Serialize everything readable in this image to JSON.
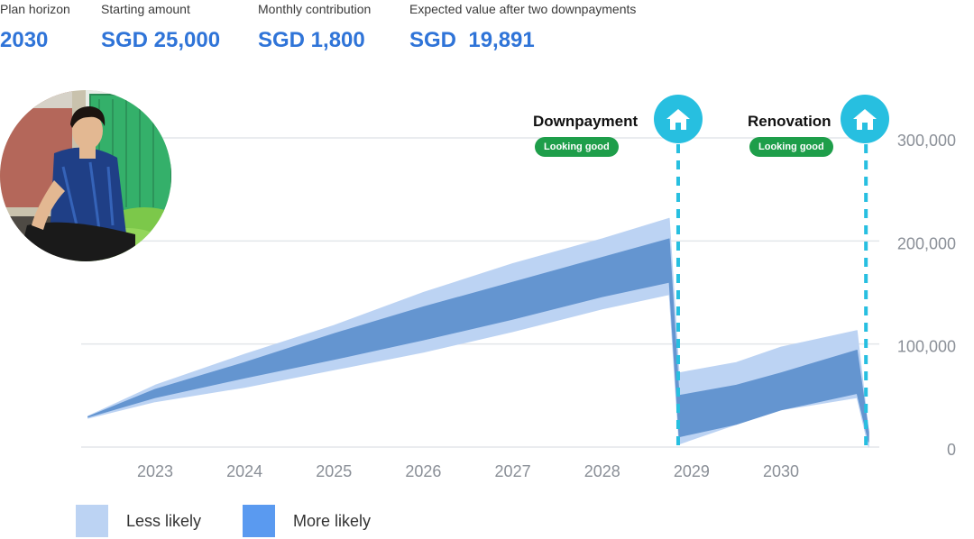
{
  "summary": {
    "plan_horizon": {
      "label": "Plan horizon",
      "value": "2030"
    },
    "starting_amount": {
      "label": "Starting amount",
      "value": "SGD 25,000"
    },
    "monthly_contribution": {
      "label": "Monthly contribution",
      "value": "SGD 1,800"
    },
    "expected_value": {
      "label": "Expected value after two downpayments",
      "value": "SGD  19,891"
    }
  },
  "events": [
    {
      "title": "Downpayment",
      "status": "Looking good",
      "icon": "home-icon",
      "year": 2028.85
    },
    {
      "title": "Renovation",
      "status": "Looking good",
      "icon": "home-icon",
      "year": 2030.95
    }
  ],
  "legend": [
    {
      "label": "Less likely",
      "color": "#bcd3f3"
    },
    {
      "label": "More likely",
      "color": "#5a9af0"
    }
  ],
  "colors": {
    "accent": "#2f74d8",
    "band_outer": "#bcd3f3",
    "band_inner": "#6495d0",
    "event_line": "#27bfe0",
    "status_badge": "#1e9e4a",
    "grid": "#e3e6ea"
  },
  "chart_data": {
    "type": "area",
    "title": "",
    "xlabel": "",
    "ylabel": "",
    "x_ticks": [
      "2023",
      "2024",
      "2025",
      "2026",
      "2027",
      "2028",
      "2029",
      "2030"
    ],
    "y_ticks": [
      "0",
      "100,000",
      "200,000",
      "300,000"
    ],
    "ylim": [
      0,
      300000
    ],
    "y_axis_position": "right",
    "grid": true,
    "legend_position": "bottom-left",
    "series": [
      {
        "name": "Less likely",
        "points": [
          {
            "x": 2022.25,
            "low": 28000,
            "high": 30000
          },
          {
            "x": 2023.0,
            "low": 44000,
            "high": 60000
          },
          {
            "x": 2024.0,
            "low": 58000,
            "high": 90000
          },
          {
            "x": 2025.0,
            "low": 75000,
            "high": 118000
          },
          {
            "x": 2026.0,
            "low": 92000,
            "high": 150000
          },
          {
            "x": 2027.0,
            "low": 112000,
            "high": 178000
          },
          {
            "x": 2028.0,
            "low": 134000,
            "high": 202000
          },
          {
            "x": 2028.75,
            "low": 148000,
            "high": 222000
          },
          {
            "x": 2028.86,
            "low": 3000,
            "high": 72000
          },
          {
            "x": 2029.5,
            "low": 22000,
            "high": 82000
          },
          {
            "x": 2030.0,
            "low": 36000,
            "high": 97000
          },
          {
            "x": 2030.85,
            "low": 48000,
            "high": 113000
          },
          {
            "x": 2030.98,
            "low": 0,
            "high": 14000
          }
        ]
      },
      {
        "name": "More likely",
        "points": [
          {
            "x": 2022.25,
            "low": 29000,
            "high": 29500
          },
          {
            "x": 2023.0,
            "low": 48000,
            "high": 56000
          },
          {
            "x": 2024.0,
            "low": 67000,
            "high": 82000
          },
          {
            "x": 2025.0,
            "low": 85000,
            "high": 110000
          },
          {
            "x": 2026.0,
            "low": 104000,
            "high": 136000
          },
          {
            "x": 2027.0,
            "low": 124000,
            "high": 160000
          },
          {
            "x": 2028.0,
            "low": 146000,
            "high": 184000
          },
          {
            "x": 2028.75,
            "low": 160000,
            "high": 202000
          },
          {
            "x": 2028.86,
            "low": 10000,
            "high": 50000
          },
          {
            "x": 2029.5,
            "low": 22000,
            "high": 60000
          },
          {
            "x": 2030.0,
            "low": 36000,
            "high": 72000
          },
          {
            "x": 2030.85,
            "low": 52000,
            "high": 94000
          },
          {
            "x": 2030.98,
            "low": 5000,
            "high": 15000
          }
        ]
      }
    ]
  }
}
